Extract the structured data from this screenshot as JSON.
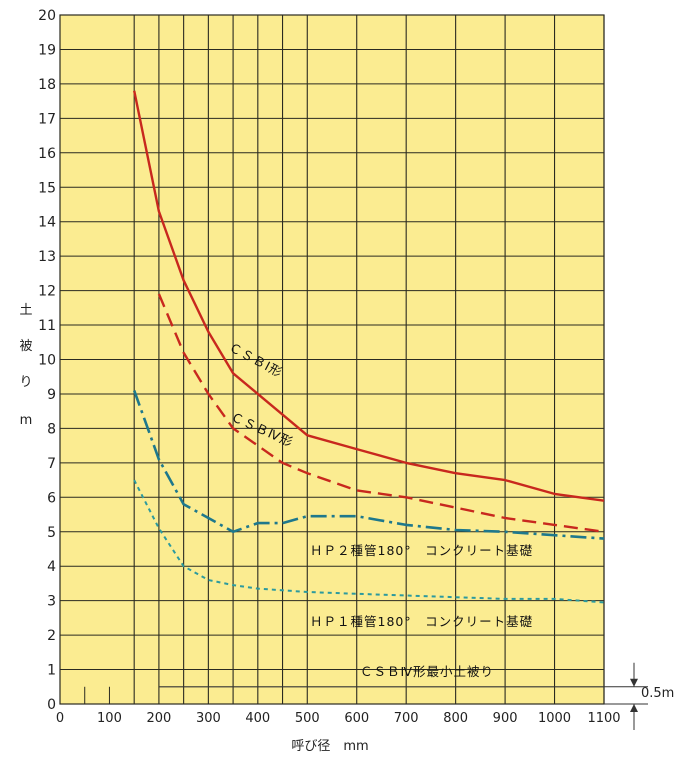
{
  "chart_data": {
    "type": "line",
    "xlabel": "呼び径　mm",
    "ylabel_chars": [
      "土",
      "被",
      "り",
      "m"
    ],
    "xlim": [
      0,
      1100
    ],
    "ylim": [
      0,
      20
    ],
    "x_ticks": [
      0,
      100,
      200,
      300,
      400,
      500,
      600,
      700,
      800,
      900,
      1000,
      1100
    ],
    "y_ticks": [
      0,
      1,
      2,
      3,
      4,
      5,
      6,
      7,
      8,
      9,
      10,
      11,
      12,
      13,
      14,
      15,
      16,
      17,
      18,
      19,
      20
    ],
    "vertical_gridlines": [
      150,
      200,
      250,
      300,
      350,
      400,
      450,
      500,
      600,
      700,
      800,
      900,
      1000,
      1100
    ],
    "grid": true,
    "colors": {
      "background": "#fbec91",
      "grid": "#2a2a20",
      "red": "#c8281e",
      "teal": "#1e788c",
      "teal_light": "#2c9a9e",
      "dark": "#333333"
    },
    "series": [
      {
        "label": "ＣＳＢⅠ形",
        "color": "#c8281e",
        "style": "solid",
        "points": [
          [
            150,
            17.8
          ],
          [
            200,
            14.3
          ],
          [
            250,
            12.3
          ],
          [
            300,
            10.8
          ],
          [
            350,
            9.6
          ],
          [
            400,
            9.0
          ],
          [
            450,
            8.4
          ],
          [
            500,
            7.8
          ],
          [
            600,
            7.4
          ],
          [
            700,
            7.0
          ],
          [
            800,
            6.7
          ],
          [
            900,
            6.5
          ],
          [
            1000,
            6.1
          ],
          [
            1100,
            5.9
          ]
        ]
      },
      {
        "label": "ＣＳＢⅣ形",
        "color": "#c8281e",
        "style": "dashed",
        "points": [
          [
            200,
            11.9
          ],
          [
            250,
            10.2
          ],
          [
            300,
            9.0
          ],
          [
            350,
            8.0
          ],
          [
            400,
            7.5
          ],
          [
            450,
            7.0
          ],
          [
            500,
            6.7
          ],
          [
            600,
            6.2
          ],
          [
            700,
            6.0
          ],
          [
            800,
            5.7
          ],
          [
            900,
            5.4
          ],
          [
            1000,
            5.2
          ],
          [
            1100,
            5.0
          ]
        ]
      },
      {
        "label": "ＨＰ２種管180°コンクリート基礎",
        "color": "#1e788c",
        "style": "dashdot",
        "points": [
          [
            150,
            9.1
          ],
          [
            200,
            7.1
          ],
          [
            250,
            5.8
          ],
          [
            300,
            5.4
          ],
          [
            350,
            5.0
          ],
          [
            400,
            5.25
          ],
          [
            450,
            5.25
          ],
          [
            500,
            5.45
          ],
          [
            600,
            5.45
          ],
          [
            700,
            5.2
          ],
          [
            800,
            5.05
          ],
          [
            900,
            5.0
          ],
          [
            1000,
            4.9
          ],
          [
            1100,
            4.8
          ]
        ]
      },
      {
        "label": "ＨＰ１種管180°コンクリート基礎",
        "color": "#2c9a9e",
        "style": "dotted",
        "points": [
          [
            150,
            6.5
          ],
          [
            200,
            5.1
          ],
          [
            250,
            4.0
          ],
          [
            300,
            3.6
          ],
          [
            350,
            3.45
          ],
          [
            400,
            3.35
          ],
          [
            500,
            3.25
          ],
          [
            600,
            3.2
          ],
          [
            700,
            3.15
          ],
          [
            800,
            3.1
          ],
          [
            900,
            3.05
          ],
          [
            1000,
            3.05
          ],
          [
            1100,
            2.95
          ]
        ]
      },
      {
        "label": "ＣＳＢⅣ形最小土被り",
        "color": "#333333",
        "style": "solid",
        "points": [
          [
            200,
            0.5
          ],
          [
            1100,
            0.5
          ]
        ]
      }
    ],
    "annotations": {
      "csb1": "ＣＳＢⅠ形",
      "csb4": "ＣＳＢⅣ形",
      "hp2": "ＨＰ２種管180°　コンクリート基礎",
      "hp1": "ＨＰ１種管180°　コンクリート基礎",
      "min_cover": "ＣＳＢⅣ形最小土被り",
      "dimension_label": "0.5m",
      "dimension_value": 0.5
    }
  }
}
